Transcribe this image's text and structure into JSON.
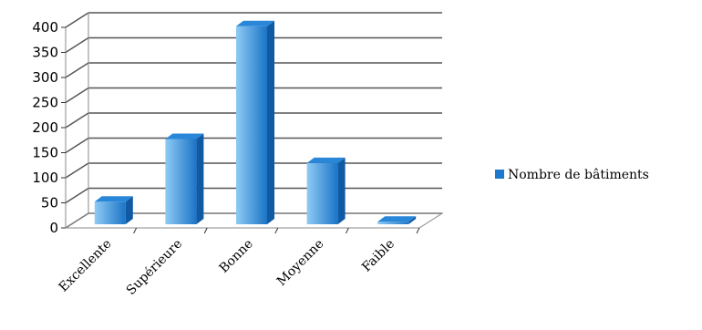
{
  "chart_data": {
    "type": "bar",
    "title": "",
    "xlabel": "",
    "ylabel": "",
    "categories": [
      "Excellente",
      "Supérieure",
      "Bonne",
      "Moyenne",
      "Faible"
    ],
    "series": [
      {
        "name": "Nombre de bâtiments",
        "values": [
          45,
          170,
          395,
          122,
          5
        ]
      }
    ],
    "ylim": [
      0,
      400
    ],
    "yticks": [
      "0",
      "50",
      "100",
      "150",
      "200",
      "250",
      "300",
      "350",
      "400"
    ],
    "grid": true,
    "style": "3d-column",
    "legend": "right",
    "colors": {
      "bar_light": "#7fc4f3",
      "bar_dark": "#1c79cc",
      "bar_side": "#0f5aa3",
      "bar_top": "#2a86d8",
      "grid": "#555555"
    }
  }
}
